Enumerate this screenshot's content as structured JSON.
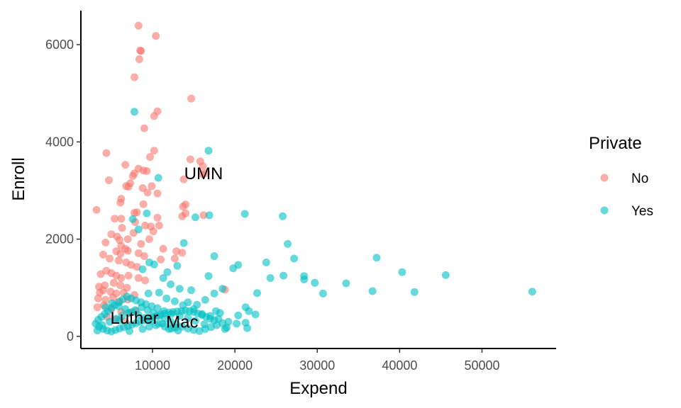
{
  "chart_data": {
    "type": "scatter",
    "xlabel": "Expend",
    "ylabel": "Enroll",
    "xlim": [
      1300,
      59000
    ],
    "ylim": [
      -250,
      6700
    ],
    "x_ticks": [
      10000,
      20000,
      30000,
      40000,
      50000
    ],
    "x_tick_labels": [
      "10000",
      "20000",
      "30000",
      "40000",
      "50000"
    ],
    "y_ticks": [
      0,
      2000,
      4000,
      6000
    ],
    "y_tick_labels": [
      "0",
      "2000",
      "4000",
      "6000"
    ],
    "grid": false,
    "legend": {
      "title": "Private",
      "position": "right"
    },
    "point_opacity": 0.6,
    "series": [
      {
        "name": "No",
        "color": "#F8766D",
        "points": [
          [
            8300,
            6390
          ],
          [
            10400,
            6180
          ],
          [
            8500,
            5880
          ],
          [
            8600,
            5870
          ],
          [
            8400,
            5700
          ],
          [
            7800,
            5330
          ],
          [
            14700,
            4890
          ],
          [
            9000,
            4280
          ],
          [
            10600,
            4630
          ],
          [
            10200,
            4530
          ],
          [
            4400,
            3770
          ],
          [
            9700,
            3690
          ],
          [
            10200,
            3820
          ],
          [
            14600,
            3640
          ],
          [
            15800,
            3600
          ],
          [
            16100,
            3500
          ],
          [
            16500,
            3360
          ],
          [
            16000,
            3340
          ],
          [
            6700,
            3530
          ],
          [
            8300,
            3450
          ],
          [
            8900,
            3410
          ],
          [
            9300,
            3400
          ],
          [
            7600,
            3300
          ],
          [
            7800,
            3350
          ],
          [
            4700,
            3210
          ],
          [
            7300,
            3150
          ],
          [
            6800,
            3090
          ],
          [
            7100,
            3080
          ],
          [
            8800,
            3050
          ],
          [
            9900,
            3090
          ],
          [
            10600,
            2940
          ],
          [
            9400,
            2960
          ],
          [
            13800,
            3230
          ],
          [
            6200,
            2830
          ],
          [
            6100,
            2750
          ],
          [
            8900,
            2720
          ],
          [
            14000,
            2710
          ],
          [
            13700,
            2670
          ],
          [
            3200,
            2600
          ],
          [
            14000,
            2530
          ],
          [
            13600,
            2470
          ],
          [
            8100,
            2550
          ],
          [
            7800,
            2540
          ],
          [
            5400,
            2420
          ],
          [
            6200,
            2420
          ],
          [
            7900,
            2350
          ],
          [
            10600,
            2440
          ],
          [
            10800,
            2280
          ],
          [
            9100,
            2280
          ],
          [
            6300,
            2230
          ],
          [
            7700,
            2130
          ],
          [
            9800,
            2260
          ],
          [
            10100,
            2160
          ],
          [
            16200,
            2490
          ],
          [
            18800,
            960
          ],
          [
            5000,
            2100
          ],
          [
            5700,
            2050
          ],
          [
            6000,
            1980
          ],
          [
            7000,
            2000
          ],
          [
            8600,
            1900
          ],
          [
            9600,
            2000
          ],
          [
            11300,
            1800
          ],
          [
            12900,
            1750
          ],
          [
            13600,
            1720
          ],
          [
            4300,
            1930
          ],
          [
            6200,
            1860
          ],
          [
            6700,
            1800
          ],
          [
            5600,
            1750
          ],
          [
            6100,
            1700
          ],
          [
            7000,
            1760
          ],
          [
            8300,
            1710
          ],
          [
            9000,
            1650
          ],
          [
            11000,
            1580
          ],
          [
            12700,
            1600
          ],
          [
            4000,
            1680
          ],
          [
            4800,
            1600
          ],
          [
            5900,
            1560
          ],
          [
            6800,
            1520
          ],
          [
            7400,
            1470
          ],
          [
            8100,
            1430
          ],
          [
            3700,
            1280
          ],
          [
            4400,
            1350
          ],
          [
            5000,
            1300
          ],
          [
            5600,
            1250
          ],
          [
            6200,
            1200
          ],
          [
            7100,
            1250
          ],
          [
            8300,
            1200
          ],
          [
            9100,
            1150
          ],
          [
            3500,
            1020
          ],
          [
            4200,
            1050
          ],
          [
            5300,
            1100
          ],
          [
            6100,
            1050
          ],
          [
            6900,
            1000
          ],
          [
            3600,
            900
          ],
          [
            4000,
            950
          ],
          [
            4900,
            920
          ],
          [
            5600,
            880
          ],
          [
            6500,
            900
          ],
          [
            7800,
            850
          ],
          [
            3400,
            780
          ],
          [
            4300,
            750
          ],
          [
            5200,
            800
          ],
          [
            6000,
            720
          ],
          [
            7000,
            760
          ],
          [
            3300,
            600
          ],
          [
            4100,
            640
          ],
          [
            5000,
            560
          ],
          [
            6200,
            500
          ],
          [
            7200,
            480
          ],
          [
            8000,
            520
          ],
          [
            4500,
            400
          ],
          [
            5500,
            350
          ],
          [
            6700,
            300
          ]
        ]
      },
      {
        "name": "Yes",
        "color": "#00BFC4",
        "points": [
          [
            7800,
            4620
          ],
          [
            16800,
            3820
          ],
          [
            10700,
            3260
          ],
          [
            15200,
            2450
          ],
          [
            16900,
            2490
          ],
          [
            21200,
            2520
          ],
          [
            25800,
            2470
          ],
          [
            26400,
            1900
          ],
          [
            27200,
            1600
          ],
          [
            17500,
            1650
          ],
          [
            20400,
            1470
          ],
          [
            19800,
            1400
          ],
          [
            23800,
            1520
          ],
          [
            24300,
            1200
          ],
          [
            25900,
            1250
          ],
          [
            28400,
            1170
          ],
          [
            28400,
            1240
          ],
          [
            29700,
            1100
          ],
          [
            30700,
            880
          ],
          [
            33500,
            1090
          ],
          [
            37200,
            1620
          ],
          [
            36700,
            930
          ],
          [
            40300,
            1320
          ],
          [
            41800,
            910
          ],
          [
            45600,
            1260
          ],
          [
            56100,
            920
          ],
          [
            8300,
            2200
          ],
          [
            9300,
            2530
          ],
          [
            7600,
            2410
          ],
          [
            13800,
            1920
          ],
          [
            13000,
            1450
          ],
          [
            11800,
            1320
          ],
          [
            16800,
            1240
          ],
          [
            18500,
            980
          ],
          [
            17500,
            880
          ],
          [
            22700,
            890
          ],
          [
            21300,
            600
          ],
          [
            22500,
            450
          ],
          [
            21700,
            520
          ],
          [
            21300,
            280
          ],
          [
            21500,
            170
          ],
          [
            18200,
            480
          ],
          [
            19000,
            180
          ],
          [
            20400,
            430
          ],
          [
            17700,
            520
          ],
          [
            16400,
            750
          ],
          [
            15400,
            650
          ],
          [
            14700,
            950
          ],
          [
            14300,
            700
          ],
          [
            9600,
            1520
          ],
          [
            10200,
            1480
          ],
          [
            8800,
            1380
          ],
          [
            11300,
            1200
          ],
          [
            12200,
            1070
          ],
          [
            13300,
            980
          ],
          [
            9500,
            880
          ],
          [
            10800,
            900
          ],
          [
            11700,
            780
          ],
          [
            12700,
            720
          ],
          [
            13700,
            640
          ],
          [
            15000,
            560
          ],
          [
            16000,
            460
          ],
          [
            17000,
            420
          ],
          [
            18000,
            360
          ],
          [
            19200,
            300
          ],
          [
            20200,
            260
          ],
          [
            18800,
            150
          ],
          [
            16300,
            250
          ],
          [
            15200,
            320
          ],
          [
            14300,
            380
          ],
          [
            13300,
            420
          ],
          [
            12300,
            460
          ],
          [
            11400,
            520
          ],
          [
            10600,
            580
          ],
          [
            9900,
            620
          ],
          [
            9200,
            660
          ],
          [
            8600,
            700
          ],
          [
            8000,
            740
          ],
          [
            7400,
            780
          ],
          [
            6900,
            820
          ],
          [
            6400,
            760
          ],
          [
            5900,
            700
          ],
          [
            5400,
            640
          ],
          [
            5000,
            580
          ],
          [
            4600,
            520
          ],
          [
            4200,
            460
          ],
          [
            3800,
            400
          ],
          [
            3400,
            340
          ],
          [
            3100,
            260
          ],
          [
            3500,
            200
          ],
          [
            4000,
            150
          ],
          [
            4500,
            120
          ],
          [
            5000,
            100
          ],
          [
            5500,
            130
          ],
          [
            6000,
            160
          ],
          [
            6500,
            190
          ],
          [
            7000,
            210
          ],
          [
            7500,
            240
          ],
          [
            8000,
            270
          ],
          [
            8500,
            300
          ],
          [
            9000,
            330
          ],
          [
            9500,
            360
          ],
          [
            10000,
            390
          ],
          [
            10500,
            420
          ],
          [
            11000,
            450
          ],
          [
            11500,
            470
          ],
          [
            12000,
            490
          ],
          [
            12500,
            500
          ],
          [
            13000,
            510
          ],
          [
            13500,
            520
          ],
          [
            14000,
            530
          ],
          [
            14500,
            520
          ],
          [
            15000,
            500
          ],
          [
            15500,
            470
          ],
          [
            16000,
            440
          ],
          [
            16500,
            400
          ],
          [
            17000,
            360
          ],
          [
            17500,
            330
          ],
          [
            3300,
            120
          ],
          [
            3900,
            230
          ],
          [
            4800,
            300
          ],
          [
            5600,
            360
          ],
          [
            6300,
            420
          ],
          [
            7100,
            480
          ],
          [
            7900,
            540
          ],
          [
            8700,
            600
          ],
          [
            9400,
            540
          ],
          [
            10100,
            480
          ],
          [
            10800,
            420
          ],
          [
            11500,
            360
          ],
          [
            12200,
            300
          ],
          [
            12900,
            250
          ],
          [
            13600,
            200
          ],
          [
            14300,
            160
          ],
          [
            15000,
            130
          ],
          [
            15700,
            110
          ],
          [
            16400,
            150
          ],
          [
            17100,
            190
          ],
          [
            17800,
            230
          ],
          [
            18500,
            270
          ],
          [
            4300,
            600
          ],
          [
            5100,
            680
          ],
          [
            5900,
            620
          ],
          [
            6700,
            560
          ],
          [
            7500,
            500
          ],
          [
            8300,
            440
          ],
          [
            9100,
            380
          ],
          [
            9900,
            320
          ],
          [
            10700,
            260
          ],
          [
            11500,
            200
          ],
          [
            12300,
            160
          ],
          [
            13100,
            120
          ],
          [
            6000,
            330
          ],
          [
            7200,
            110
          ],
          [
            8800,
            150
          ],
          [
            9600,
            200
          ],
          [
            10400,
            230
          ],
          [
            11200,
            260
          ],
          [
            12000,
            150
          ],
          [
            12800,
            180
          ]
        ]
      }
    ],
    "annotations": [
      {
        "text": "UMN",
        "x": 16200,
        "y": 3350
      },
      {
        "text": "Luther",
        "x": 7800,
        "y": 380
      },
      {
        "text": "Mac",
        "x": 13600,
        "y": 300
      }
    ]
  }
}
